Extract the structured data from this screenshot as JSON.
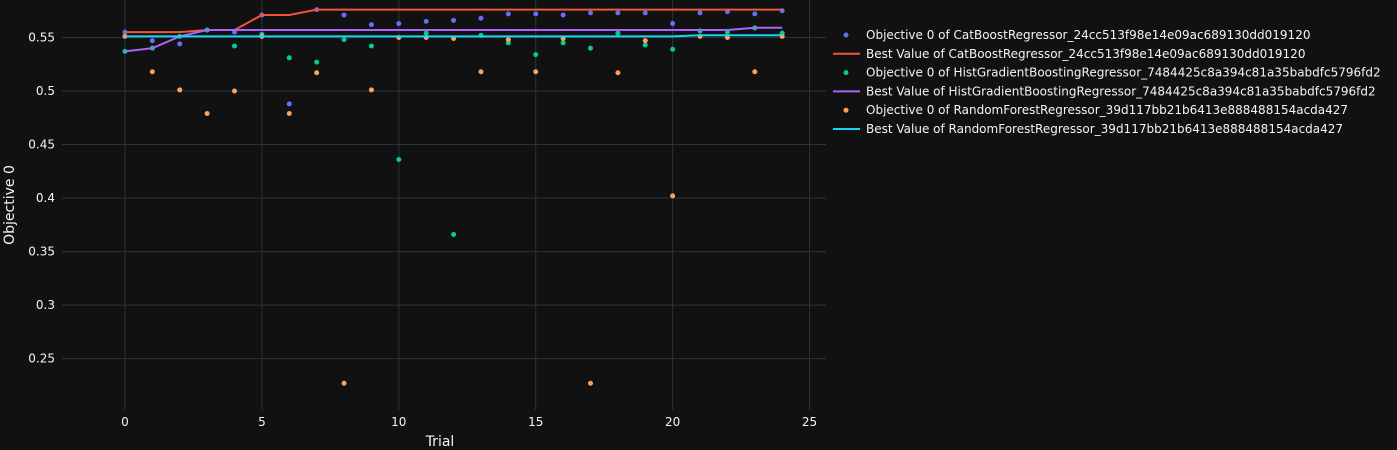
{
  "chart_data": {
    "type": "scatter",
    "xlabel": "Trial",
    "ylabel": "Objective 0",
    "xlim": [
      -2.3,
      25.6
    ],
    "ylim": [
      0.202,
      0.585
    ],
    "x_ticks": [
      0,
      5,
      10,
      15,
      20,
      25
    ],
    "y_ticks": [
      0.25,
      0.3,
      0.35,
      0.4,
      0.45,
      0.5,
      0.55
    ],
    "y_tick_labels": [
      "0.25",
      "0.3",
      "0.35",
      "0.4",
      "0.45",
      "0.5",
      "0.55"
    ],
    "grid": true,
    "legend_position": "right",
    "series": [
      {
        "name": "Objective 0 of CatBoostRegressor_24cc513f98e14e09ac689130dd019120",
        "mode": "markers",
        "color": "#636efa",
        "x": [
          0,
          1,
          2,
          3,
          4,
          5,
          6,
          7,
          8,
          9,
          10,
          11,
          12,
          13,
          14,
          15,
          16,
          17,
          18,
          19,
          20,
          21,
          22,
          23,
          24
        ],
        "y": [
          0.555,
          0.547,
          0.544,
          0.557,
          0.555,
          0.571,
          0.488,
          0.576,
          0.571,
          0.562,
          0.563,
          0.565,
          0.566,
          0.568,
          0.572,
          0.572,
          0.571,
          0.573,
          0.573,
          0.573,
          0.563,
          0.573,
          0.574,
          0.572,
          0.575
        ]
      },
      {
        "name": "Best Value of CatBoostRegressor_24cc513f98e14e09ac689130dd019120",
        "mode": "lines",
        "color": "#ef553b",
        "x": [
          0,
          1,
          2,
          3,
          4,
          5,
          6,
          7,
          8,
          9,
          10,
          11,
          12,
          13,
          14,
          15,
          16,
          17,
          18,
          19,
          20,
          21,
          22,
          23,
          24
        ],
        "y": [
          0.555,
          0.555,
          0.555,
          0.557,
          0.557,
          0.571,
          0.571,
          0.576,
          0.576,
          0.576,
          0.576,
          0.576,
          0.576,
          0.576,
          0.576,
          0.576,
          0.576,
          0.576,
          0.576,
          0.576,
          0.576,
          0.576,
          0.576,
          0.576,
          0.576
        ]
      },
      {
        "name": "Objective 0 of HistGradientBoostingRegressor_7484425c8a394c81a35babdfc5796fd2",
        "mode": "markers",
        "color": "#00cc96",
        "x": [
          0,
          1,
          2,
          3,
          4,
          5,
          6,
          7,
          8,
          9,
          10,
          11,
          12,
          13,
          14,
          15,
          16,
          17,
          18,
          19,
          20,
          21,
          22,
          23,
          24
        ],
        "y": [
          0.537,
          0.54,
          0.551,
          0.557,
          0.542,
          0.553,
          0.531,
          0.527,
          0.548,
          0.542,
          0.436,
          0.554,
          0.366,
          0.552,
          0.545,
          0.534,
          0.545,
          0.54,
          0.554,
          0.543,
          0.539,
          0.556,
          0.555,
          0.559,
          0.554
        ]
      },
      {
        "name": "Best Value of HistGradientBoostingRegressor_7484425c8a394c81a35babdfc5796fd2",
        "mode": "lines",
        "color": "#ab63fa",
        "x": [
          0,
          1,
          2,
          3,
          4,
          5,
          6,
          7,
          8,
          9,
          10,
          11,
          12,
          13,
          14,
          15,
          16,
          17,
          18,
          19,
          20,
          21,
          22,
          23,
          24
        ],
        "y": [
          0.537,
          0.54,
          0.551,
          0.557,
          0.557,
          0.557,
          0.557,
          0.557,
          0.557,
          0.557,
          0.557,
          0.557,
          0.557,
          0.557,
          0.557,
          0.557,
          0.557,
          0.557,
          0.557,
          0.557,
          0.557,
          0.557,
          0.557,
          0.559,
          0.559
        ]
      },
      {
        "name": "Objective 0 of RandomForestRegressor_39d117bb21b6413e888488154acda427",
        "mode": "markers",
        "color": "#ffa15a",
        "x": [
          0,
          1,
          2,
          3,
          4,
          5,
          6,
          7,
          8,
          9,
          10,
          11,
          12,
          13,
          14,
          15,
          16,
          17,
          18,
          19,
          20,
          21,
          22,
          23,
          24
        ],
        "y": [
          0.551,
          0.518,
          0.501,
          0.479,
          0.5,
          0.551,
          0.479,
          0.517,
          0.227,
          0.501,
          0.55,
          0.55,
          0.549,
          0.518,
          0.548,
          0.518,
          0.549,
          0.227,
          0.517,
          0.547,
          0.402,
          0.551,
          0.55,
          0.518,
          0.551
        ]
      },
      {
        "name": "Best Value of RandomForestRegressor_39d117bb21b6413e888488154acda427",
        "mode": "lines",
        "color": "#19d3f3",
        "x": [
          0,
          1,
          2,
          3,
          4,
          5,
          6,
          7,
          8,
          9,
          10,
          11,
          12,
          13,
          14,
          15,
          16,
          17,
          18,
          19,
          20,
          21,
          22,
          23,
          24
        ],
        "y": [
          0.551,
          0.551,
          0.551,
          0.551,
          0.551,
          0.551,
          0.551,
          0.551,
          0.551,
          0.551,
          0.551,
          0.551,
          0.551,
          0.551,
          0.551,
          0.551,
          0.551,
          0.551,
          0.551,
          0.551,
          0.551,
          0.552,
          0.552,
          0.552,
          0.552
        ]
      }
    ]
  }
}
